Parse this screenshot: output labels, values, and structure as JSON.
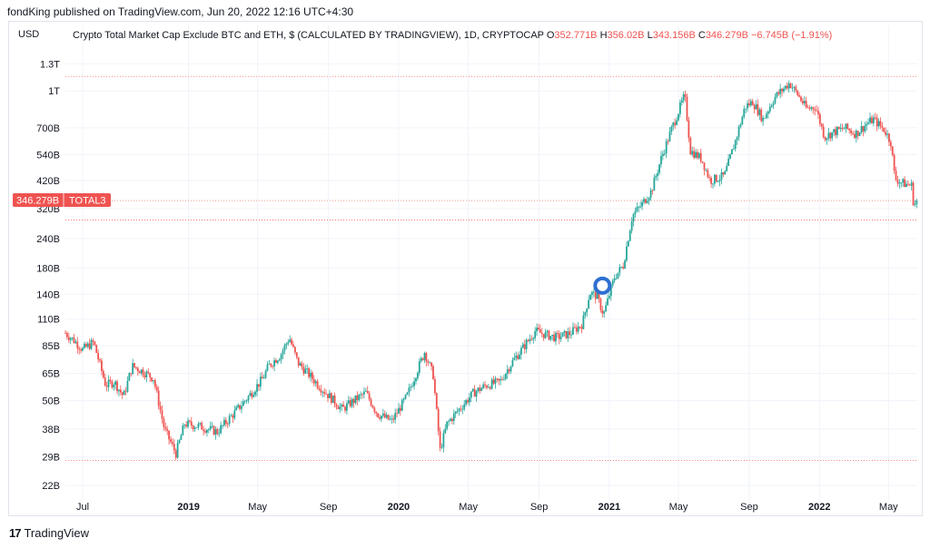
{
  "header": {
    "published_text": "fondKing published on TradingView.com, Jun 20, 2022 12:16 UTC+4:30"
  },
  "footer": {
    "logo_glyph": "17",
    "brand": "TradingView"
  },
  "colors": {
    "up": "#26a69a",
    "down": "#ef5350",
    "price_line": "#ef5350",
    "grid": "#f0f3fa",
    "marker": "#2962ff"
  },
  "chart_data": {
    "type": "candlestick",
    "scale": "log",
    "currency_label": "USD",
    "legend": {
      "title": "Crypto Total Market Cap Exclude BTC and ETH, $ (CALCULATED BY TRADINGVIEW), 1D, CRYPTOCAP",
      "o_label": "O",
      "o_value": "352.771B",
      "h_label": "H",
      "h_value": "356.02B",
      "l_label": "L",
      "l_value": "343.156B",
      "c_label": "C",
      "c_value": "346.279B",
      "change": "−6.745B (−1.91%)"
    },
    "price_tag": {
      "value": "346.279B",
      "symbol": "TOTAL3"
    },
    "y_ticks": [
      {
        "label": "1.3T",
        "value": 1300
      },
      {
        "label": "1T",
        "value": 1000
      },
      {
        "label": "700B",
        "value": 700
      },
      {
        "label": "540B",
        "value": 540
      },
      {
        "label": "420B",
        "value": 420
      },
      {
        "label": "320B",
        "value": 320
      },
      {
        "label": "240B",
        "value": 240
      },
      {
        "label": "180B",
        "value": 180
      },
      {
        "label": "140B",
        "value": 140
      },
      {
        "label": "110B",
        "value": 110
      },
      {
        "label": "85B",
        "value": 85
      },
      {
        "label": "65B",
        "value": 65
      },
      {
        "label": "50B",
        "value": 50
      },
      {
        "label": "38B",
        "value": 38
      },
      {
        "label": "29B",
        "value": 29
      },
      {
        "label": "22B",
        "value": 22
      }
    ],
    "ylim": [
      20,
      1500
    ],
    "x_ticks": [
      {
        "label": "Jul",
        "bold": false
      },
      {
        "label": "2019",
        "bold": true
      },
      {
        "label": "May",
        "bold": false
      },
      {
        "label": "Sep",
        "bold": false
      },
      {
        "label": "2020",
        "bold": true
      },
      {
        "label": "May",
        "bold": false
      },
      {
        "label": "Sep",
        "bold": false
      },
      {
        "label": "2021",
        "bold": true
      },
      {
        "label": "May",
        "bold": false
      },
      {
        "label": "Sep",
        "bold": false
      },
      {
        "label": "2022",
        "bold": true
      },
      {
        "label": "May",
        "bold": false
      }
    ],
    "x_tick_dates": [
      "2018-07-01",
      "2019-01-01",
      "2019-05-01",
      "2019-09-01",
      "2020-01-01",
      "2020-05-01",
      "2020-09-01",
      "2021-01-01",
      "2021-05-01",
      "2021-09-01",
      "2022-01-01",
      "2022-05-01"
    ],
    "x_range": [
      "2018-06-01",
      "2022-06-20"
    ],
    "reference_lines": [
      1150,
      346.279,
      287,
      28
    ],
    "marker_date": "2020-12-20",
    "series_anchors": [
      {
        "d": "2018-06-01",
        "v": 96
      },
      {
        "d": "2018-06-15",
        "v": 90
      },
      {
        "d": "2018-07-01",
        "v": 82
      },
      {
        "d": "2018-07-20",
        "v": 88
      },
      {
        "d": "2018-08-10",
        "v": 58
      },
      {
        "d": "2018-08-25",
        "v": 60
      },
      {
        "d": "2018-09-10",
        "v": 52
      },
      {
        "d": "2018-09-25",
        "v": 70
      },
      {
        "d": "2018-10-15",
        "v": 66
      },
      {
        "d": "2018-11-01",
        "v": 62
      },
      {
        "d": "2018-11-20",
        "v": 38
      },
      {
        "d": "2018-12-10",
        "v": 30
      },
      {
        "d": "2018-12-25",
        "v": 40
      },
      {
        "d": "2019-01-20",
        "v": 39
      },
      {
        "d": "2019-02-20",
        "v": 37
      },
      {
        "d": "2019-03-20",
        "v": 44
      },
      {
        "d": "2019-04-15",
        "v": 52
      },
      {
        "d": "2019-05-10",
        "v": 62
      },
      {
        "d": "2019-05-20",
        "v": 70
      },
      {
        "d": "2019-06-10",
        "v": 78
      },
      {
        "d": "2019-06-25",
        "v": 92
      },
      {
        "d": "2019-07-10",
        "v": 72
      },
      {
        "d": "2019-07-25",
        "v": 66
      },
      {
        "d": "2019-08-15",
        "v": 58
      },
      {
        "d": "2019-09-10",
        "v": 50
      },
      {
        "d": "2019-09-25",
        "v": 46
      },
      {
        "d": "2019-10-15",
        "v": 50
      },
      {
        "d": "2019-11-05",
        "v": 54
      },
      {
        "d": "2019-11-25",
        "v": 44
      },
      {
        "d": "2019-12-20",
        "v": 41
      },
      {
        "d": "2020-01-15",
        "v": 52
      },
      {
        "d": "2020-02-15",
        "v": 80
      },
      {
        "d": "2020-03-01",
        "v": 64
      },
      {
        "d": "2020-03-13",
        "v": 31
      },
      {
        "d": "2020-03-25",
        "v": 40
      },
      {
        "d": "2020-04-15",
        "v": 46
      },
      {
        "d": "2020-05-10",
        "v": 54
      },
      {
        "d": "2020-06-01",
        "v": 58
      },
      {
        "d": "2020-06-25",
        "v": 60
      },
      {
        "d": "2020-07-15",
        "v": 72
      },
      {
        "d": "2020-08-05",
        "v": 84
      },
      {
        "d": "2020-08-25",
        "v": 98
      },
      {
        "d": "2020-09-10",
        "v": 95
      },
      {
        "d": "2020-10-01",
        "v": 92
      },
      {
        "d": "2020-10-25",
        "v": 96
      },
      {
        "d": "2020-11-15",
        "v": 105
      },
      {
        "d": "2020-11-28",
        "v": 142
      },
      {
        "d": "2020-12-10",
        "v": 138
      },
      {
        "d": "2020-12-22",
        "v": 115
      },
      {
        "d": "2021-01-10",
        "v": 165
      },
      {
        "d": "2021-01-25",
        "v": 185
      },
      {
        "d": "2021-02-10",
        "v": 300
      },
      {
        "d": "2021-02-25",
        "v": 330
      },
      {
        "d": "2021-03-15",
        "v": 380
      },
      {
        "d": "2021-04-01",
        "v": 520
      },
      {
        "d": "2021-04-20",
        "v": 700
      },
      {
        "d": "2021-05-12",
        "v": 960
      },
      {
        "d": "2021-05-22",
        "v": 560
      },
      {
        "d": "2021-06-10",
        "v": 520
      },
      {
        "d": "2021-06-25",
        "v": 420
      },
      {
        "d": "2021-07-20",
        "v": 440
      },
      {
        "d": "2021-08-10",
        "v": 640
      },
      {
        "d": "2021-08-25",
        "v": 860
      },
      {
        "d": "2021-09-07",
        "v": 900
      },
      {
        "d": "2021-09-25",
        "v": 760
      },
      {
        "d": "2021-10-15",
        "v": 940
      },
      {
        "d": "2021-11-10",
        "v": 1080
      },
      {
        "d": "2021-11-25",
        "v": 960
      },
      {
        "d": "2021-12-10",
        "v": 840
      },
      {
        "d": "2021-12-25",
        "v": 860
      },
      {
        "d": "2022-01-10",
        "v": 640
      },
      {
        "d": "2022-01-25",
        "v": 670
      },
      {
        "d": "2022-02-15",
        "v": 700
      },
      {
        "d": "2022-03-05",
        "v": 660
      },
      {
        "d": "2022-03-25",
        "v": 730
      },
      {
        "d": "2022-04-05",
        "v": 760
      },
      {
        "d": "2022-04-25",
        "v": 680
      },
      {
        "d": "2022-05-05",
        "v": 610
      },
      {
        "d": "2022-05-12",
        "v": 430
      },
      {
        "d": "2022-05-25",
        "v": 410
      },
      {
        "d": "2022-06-10",
        "v": 400
      },
      {
        "d": "2022-06-14",
        "v": 330
      },
      {
        "d": "2022-06-20",
        "v": 346
      }
    ]
  }
}
